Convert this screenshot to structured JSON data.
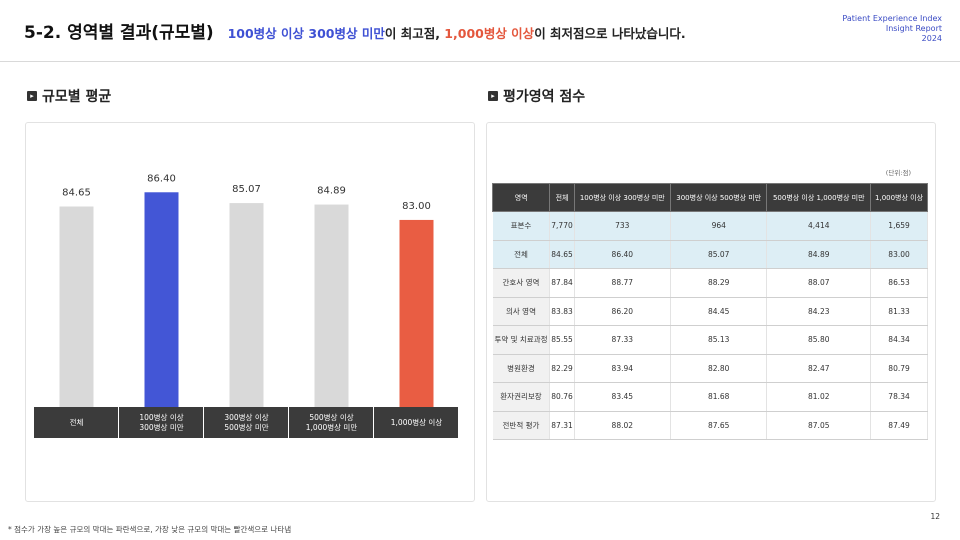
{
  "header": {
    "title": "5-2. 영역별 결과(규모별)",
    "sub_blue": "100병상 이상 300병상 미만",
    "sub_mid1": "이 최고점, ",
    "sub_red": "1,000병상 이상",
    "sub_mid2": "이 최저점으로 나타났습니다.",
    "report_line1": "Patient Experience Index",
    "report_line2": "Insight Report",
    "report_line3": "2024"
  },
  "left_section": {
    "title": "규모별 평균"
  },
  "right_section": {
    "title": "평가영역 점수",
    "unit": "(단위:점)"
  },
  "colors": {
    "grey": "#d9d9d9",
    "highest": "#4356d6",
    "lowest": "#e95d43",
    "label_bg": "#3b3b3b"
  },
  "chart_data": {
    "type": "bar",
    "categories": [
      "전체",
      "100병상 이상 300병상 미만",
      "300병상 이상 500병상 미만",
      "500병상 이상 1,000병상 미만",
      "1,000병상 이상"
    ],
    "category_lines": [
      [
        "전체"
      ],
      [
        "100병상 이상",
        "300병상 미만"
      ],
      [
        "300병상 이상",
        "500병상 미만"
      ],
      [
        "500병상 이상",
        "1,000병상 미만"
      ],
      [
        "1,000병상 이상"
      ]
    ],
    "values": [
      84.65,
      86.4,
      85.07,
      84.89,
      83.0
    ],
    "value_labels": [
      "84.65",
      "86.40",
      "85.07",
      "84.89",
      "83.00"
    ],
    "highlight": [
      "grey",
      "highest",
      "grey",
      "grey",
      "lowest"
    ],
    "ylim": [
      60,
      90
    ]
  },
  "table": {
    "headers": [
      "영역",
      "전체",
      "100병상 이상 300병상 미만",
      "300병상 이상 500병상 미만",
      "500병상 이상 1,000병상 미만",
      "1,000병상 이상"
    ],
    "rows": [
      [
        "표본수",
        "7,770",
        "733",
        "964",
        "4,414",
        "1,659"
      ],
      [
        "전체",
        "84.65",
        "86.40",
        "85.07",
        "84.89",
        "83.00"
      ],
      [
        "간호사 영역",
        "87.84",
        "88.77",
        "88.29",
        "88.07",
        "86.53"
      ],
      [
        "의사 영역",
        "83.83",
        "86.20",
        "84.45",
        "84.23",
        "81.33"
      ],
      [
        "투약 및 치료과정",
        "85.55",
        "87.33",
        "85.13",
        "85.80",
        "84.34"
      ],
      [
        "병원환경",
        "82.29",
        "83.94",
        "82.80",
        "82.47",
        "80.79"
      ],
      [
        "환자권리보장",
        "80.76",
        "83.45",
        "81.68",
        "81.02",
        "78.34"
      ],
      [
        "전반적 평가",
        "87.31",
        "88.02",
        "87.65",
        "87.05",
        "87.49"
      ]
    ]
  },
  "footnote": "* 점수가 가장 높은 규모의 막대는 파란색으로, 가장 낮은 규모의 막대는 빨간색으로 나타냄",
  "page_number": "12"
}
